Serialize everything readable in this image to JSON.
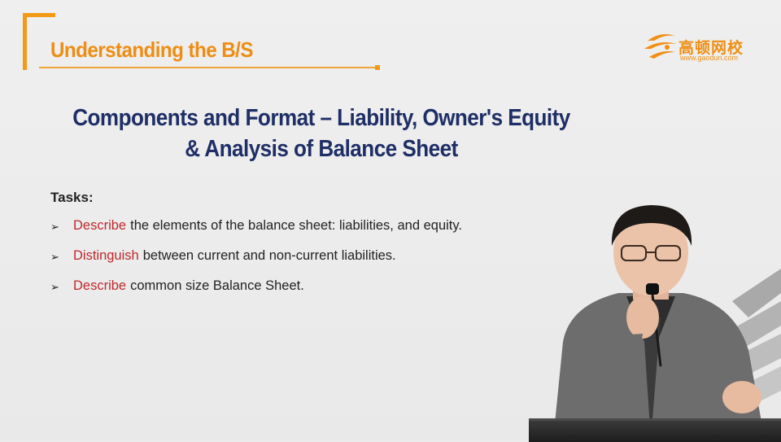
{
  "header": {
    "section_title": "Understanding the B/S"
  },
  "logo": {
    "name": "高顿网校",
    "url": "www.gaodun.com",
    "icon": "gaodun-logo-icon"
  },
  "heading": {
    "line1": "Components and Format – Liability, Owner's Equity",
    "line2": "&  Analysis of Balance Sheet"
  },
  "tasks": {
    "label": "Tasks:",
    "items": [
      {
        "verb": "Describe",
        "rest": "the elements of the balance sheet: liabilities, and equity."
      },
      {
        "verb": "Distinguish",
        "rest": "between current and non-current liabilities."
      },
      {
        "verb": "Describe",
        "rest": "common size Balance Sheet."
      }
    ]
  },
  "colors": {
    "accent": "#f29a16",
    "heading": "#1f2f66",
    "verb": "#c0282d",
    "background": "#ebebeb"
  }
}
